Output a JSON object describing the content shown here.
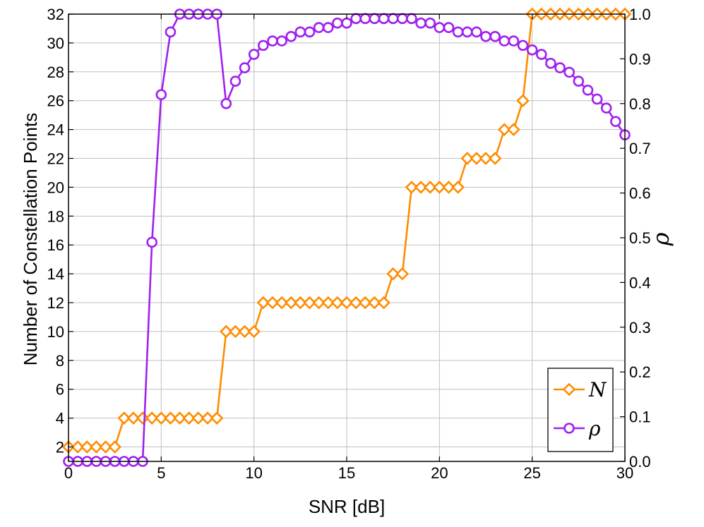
{
  "chart_data": {
    "type": "line",
    "title": "",
    "xlabel": "SNR [dB]",
    "ylabel": "Number of Constellation Points",
    "y2label": "ρ",
    "xlim": [
      0,
      30
    ],
    "ylim": [
      1,
      32
    ],
    "y2lim": [
      0,
      1
    ],
    "x_ticks": [
      "0",
      "5",
      "10",
      "15",
      "20",
      "25",
      "30"
    ],
    "y_ticks": [
      "2",
      "4",
      "6",
      "8",
      "10",
      "12",
      "14",
      "16",
      "18",
      "20",
      "22",
      "24",
      "26",
      "28",
      "30",
      "32"
    ],
    "y2_ticks": [
      "0.0",
      "0.1",
      "0.2",
      "0.3",
      "0.4",
      "0.5",
      "0.6",
      "0.7",
      "0.8",
      "0.9",
      "1.0"
    ],
    "grid": true,
    "legend_position": "bottom-right",
    "x": [
      0,
      0.5,
      1,
      1.5,
      2,
      2.5,
      3,
      3.5,
      4,
      4.5,
      5,
      5.5,
      6,
      6.5,
      7,
      7.5,
      8,
      8.5,
      9,
      9.5,
      10,
      10.5,
      11,
      11.5,
      12,
      12.5,
      13,
      13.5,
      14,
      14.5,
      15,
      15.5,
      16,
      16.5,
      17,
      17.5,
      18,
      18.5,
      19,
      19.5,
      20,
      20.5,
      21,
      21.5,
      22,
      22.5,
      23,
      23.5,
      24,
      24.5,
      25,
      25.5,
      26,
      26.5,
      27,
      27.5,
      28,
      28.5,
      29,
      29.5,
      30
    ],
    "series": [
      {
        "name": "N",
        "axis": "left",
        "color": "#FF8C00",
        "marker": "diamond",
        "values": [
          2,
          2,
          2,
          2,
          2,
          2,
          4,
          4,
          4,
          4,
          4,
          4,
          4,
          4,
          4,
          4,
          4,
          10,
          10,
          10,
          10,
          12,
          12,
          12,
          12,
          12,
          12,
          12,
          12,
          12,
          12,
          12,
          12,
          12,
          12,
          14,
          14,
          20,
          20,
          20,
          20,
          20,
          20,
          22,
          22,
          22,
          22,
          24,
          24,
          26,
          32,
          32,
          32,
          32,
          32,
          32,
          32,
          32,
          32,
          32,
          32
        ]
      },
      {
        "name": "ρ",
        "axis": "right",
        "color": "#A020F0",
        "marker": "circle",
        "values": [
          0,
          0,
          0,
          0,
          0,
          0,
          0,
          0,
          0,
          0.49,
          0.82,
          0.96,
          1.0,
          1.0,
          1.0,
          1.0,
          1.0,
          0.8,
          0.85,
          0.88,
          0.91,
          0.93,
          0.94,
          0.94,
          0.95,
          0.96,
          0.96,
          0.97,
          0.97,
          0.98,
          0.98,
          0.99,
          0.99,
          0.99,
          0.99,
          0.99,
          0.99,
          0.99,
          0.98,
          0.98,
          0.97,
          0.97,
          0.96,
          0.96,
          0.96,
          0.95,
          0.95,
          0.94,
          0.94,
          0.93,
          0.92,
          0.91,
          0.89,
          0.88,
          0.87,
          0.85,
          0.83,
          0.81,
          0.79,
          0.76,
          0.73
        ]
      }
    ]
  }
}
